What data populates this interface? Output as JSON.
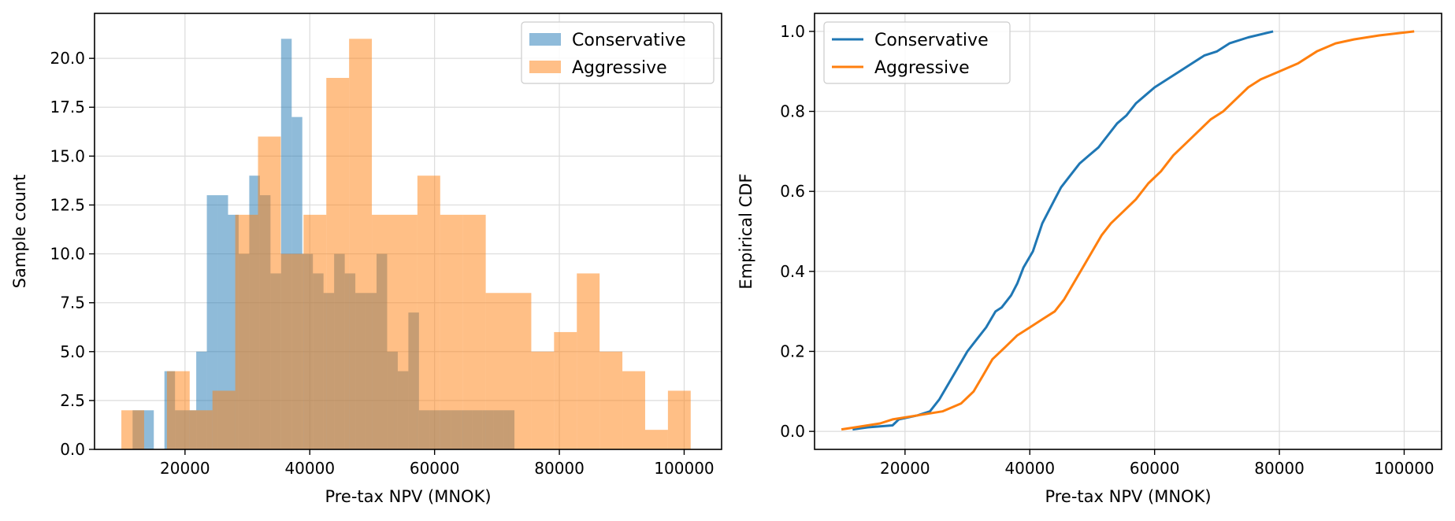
{
  "chart_data": [
    {
      "type": "bar",
      "subtype": "histogram-overlay",
      "title": "",
      "xlabel": "Pre-tax NPV (MNOK)",
      "ylabel": "Sample count",
      "xlim": [
        5500,
        106000
      ],
      "ylim": [
        0,
        22.3
      ],
      "xticks": [
        20000,
        40000,
        60000,
        80000,
        100000
      ],
      "yticks": [
        0.0,
        2.5,
        5.0,
        7.5,
        10.0,
        12.5,
        15.0,
        17.5,
        20.0
      ],
      "ytick_labels": [
        "0.0",
        "2.5",
        "5.0",
        "7.5",
        "10.0",
        "12.5",
        "15.0",
        "17.5",
        "20.0"
      ],
      "grid": true,
      "legend_position": "upper right",
      "series": [
        {
          "name": "Conservative",
          "color": "#1f77b4",
          "alpha": 0.5,
          "bin_start": 11600,
          "bin_width": 1700,
          "counts": [
            2,
            2,
            0,
            4,
            2,
            2,
            5,
            13,
            13,
            12,
            10,
            14,
            13,
            9,
            21,
            17,
            10,
            9,
            8,
            10,
            9,
            8,
            8,
            10,
            5,
            4,
            7,
            2,
            2,
            2,
            2,
            2,
            2,
            2,
            2,
            2
          ]
        },
        {
          "name": "Aggressive",
          "color": "#ff7f0e",
          "alpha": 0.5,
          "bin_start": 9800,
          "bin_width": 3650,
          "counts": [
            2,
            0,
            4,
            2,
            3,
            12,
            16,
            10,
            12,
            19,
            21,
            12,
            12,
            14,
            12,
            12,
            8,
            8,
            5,
            6,
            9,
            5,
            4,
            1,
            3
          ]
        }
      ]
    },
    {
      "type": "line",
      "subtype": "empirical-cdf",
      "title": "",
      "xlabel": "Pre-tax NPV (MNOK)",
      "ylabel": "Empirical CDF",
      "xlim": [
        5500,
        106000
      ],
      "ylim": [
        -0.045,
        1.045
      ],
      "xticks": [
        20000,
        40000,
        60000,
        80000,
        100000
      ],
      "yticks": [
        0.0,
        0.2,
        0.4,
        0.6,
        0.8,
        1.0
      ],
      "ytick_labels": [
        "0.0",
        "0.2",
        "0.4",
        "0.6",
        "0.8",
        "1.0"
      ],
      "grid": true,
      "legend_position": "upper left",
      "series": [
        {
          "name": "Conservative",
          "color": "#1f77b4",
          "x": [
            11600,
            14000,
            18000,
            19000,
            22000,
            24000,
            25500,
            27000,
            28500,
            30000,
            31500,
            33000,
            34500,
            35500,
            37000,
            38000,
            39000,
            40500,
            42000,
            43000,
            44000,
            45000,
            46500,
            48000,
            49500,
            51000,
            52500,
            54000,
            55500,
            57000,
            58500,
            60000,
            62000,
            64000,
            66000,
            68000,
            70000,
            72000,
            75000,
            79000
          ],
          "y": [
            0.005,
            0.01,
            0.015,
            0.03,
            0.04,
            0.05,
            0.08,
            0.12,
            0.16,
            0.2,
            0.23,
            0.26,
            0.3,
            0.31,
            0.34,
            0.37,
            0.41,
            0.45,
            0.52,
            0.55,
            0.58,
            0.61,
            0.64,
            0.67,
            0.69,
            0.71,
            0.74,
            0.77,
            0.79,
            0.82,
            0.84,
            0.86,
            0.88,
            0.9,
            0.92,
            0.94,
            0.95,
            0.97,
            0.985,
            1.0
          ]
        },
        {
          "name": "Aggressive",
          "color": "#ff7f0e",
          "x": [
            9800,
            12000,
            16000,
            18000,
            22000,
            26000,
            29000,
            31000,
            32500,
            34000,
            36000,
            38000,
            40000,
            42000,
            44000,
            45500,
            47000,
            48500,
            50000,
            51500,
            53000,
            55000,
            57000,
            59000,
            61000,
            63000,
            65000,
            67000,
            69000,
            71000,
            73000,
            75000,
            77000,
            80000,
            83000,
            86000,
            89000,
            92000,
            96000,
            101600
          ],
          "y": [
            0.005,
            0.01,
            0.02,
            0.03,
            0.04,
            0.05,
            0.07,
            0.1,
            0.14,
            0.18,
            0.21,
            0.24,
            0.26,
            0.28,
            0.3,
            0.33,
            0.37,
            0.41,
            0.45,
            0.49,
            0.52,
            0.55,
            0.58,
            0.62,
            0.65,
            0.69,
            0.72,
            0.75,
            0.78,
            0.8,
            0.83,
            0.86,
            0.88,
            0.9,
            0.92,
            0.95,
            0.97,
            0.98,
            0.99,
            1.0
          ]
        }
      ]
    }
  ]
}
